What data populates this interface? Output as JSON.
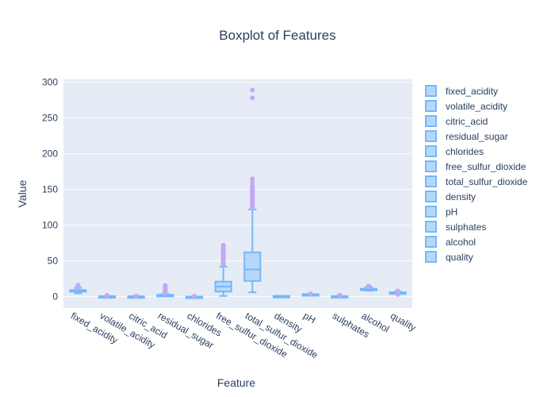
{
  "chart_data": {
    "type": "box",
    "title": "Boxplot of Features",
    "xlabel": "Feature",
    "ylabel": "Value",
    "ylim": [
      -16,
      304
    ],
    "yticks": [
      0,
      50,
      100,
      150,
      200,
      250,
      300
    ],
    "grid": true,
    "legend_position": "right",
    "colors": {
      "plot_bg": "#e5ecf6",
      "box_fill": "#b7d7f9",
      "box_line": "#74b8f9",
      "outlier": "#c3a8f5",
      "text": "#2a3f5f",
      "grid": "#ffffff"
    },
    "categories": [
      "fixed_acidity",
      "volatile_acidity",
      "citric_acid",
      "residual_sugar",
      "chlorides",
      "free_sulfur_dioxide",
      "total_sulfur_dioxide",
      "density",
      "pH",
      "sulphates",
      "alcohol",
      "quality"
    ],
    "series": [
      {
        "name": "fixed_acidity",
        "min": 4.6,
        "q1": 7.1,
        "median": 7.9,
        "q3": 9.2,
        "max": 12.3,
        "outliers": [
          12.6,
          13.0,
          13.5,
          14.0,
          14.5,
          15.0,
          15.6,
          15.9
        ]
      },
      {
        "name": "volatile_acidity",
        "min": 0.12,
        "q1": 0.39,
        "median": 0.52,
        "q3": 0.64,
        "max": 1.01,
        "outliers": [
          1.1,
          1.2,
          1.33,
          1.58
        ]
      },
      {
        "name": "citric_acid",
        "min": 0,
        "q1": 0.09,
        "median": 0.26,
        "q3": 0.42,
        "max": 0.79,
        "outliers": [
          1.0
        ]
      },
      {
        "name": "residual_sugar",
        "min": 0.9,
        "q1": 1.9,
        "median": 2.2,
        "q3": 2.6,
        "max": 3.6,
        "outliers": [
          4.0,
          5.0,
          6.0,
          7.0,
          8.0,
          9.0,
          10.0,
          11.0,
          12.0,
          13.0,
          13.9,
          15.4,
          15.5
        ]
      },
      {
        "name": "chlorides",
        "min": 0.04,
        "q1": 0.07,
        "median": 0.079,
        "q3": 0.09,
        "max": 0.119,
        "outliers": [
          0.2,
          0.4,
          0.6
        ]
      },
      {
        "name": "free_sulfur_dioxide",
        "min": 1,
        "q1": 7,
        "median": 14,
        "q3": 21,
        "max": 42,
        "outliers": [
          45,
          47,
          48,
          50,
          51,
          52,
          53,
          54,
          55,
          57,
          58,
          59,
          62,
          64,
          65,
          66,
          67,
          68,
          70,
          72
        ]
      },
      {
        "name": "total_sulfur_dioxide",
        "min": 6,
        "q1": 22,
        "median": 38,
        "q3": 62,
        "max": 122,
        "outliers": [
          124,
          126,
          127,
          128,
          129,
          130,
          131,
          133,
          134,
          135,
          136,
          137,
          139,
          140,
          141,
          142,
          143,
          144,
          145,
          146,
          147,
          148,
          149,
          150,
          151,
          152,
          153,
          155,
          160,
          165,
          278,
          289
        ]
      },
      {
        "name": "density",
        "min": 0.992,
        "q1": 0.9956,
        "median": 0.9968,
        "q3": 0.9978,
        "max": 1.001,
        "outliers": []
      },
      {
        "name": "pH",
        "min": 2.87,
        "q1": 3.21,
        "median": 3.31,
        "q3": 3.4,
        "max": 3.68,
        "outliers": [
          3.75,
          4.01
        ]
      },
      {
        "name": "sulphates",
        "min": 0.33,
        "q1": 0.55,
        "median": 0.62,
        "q3": 0.73,
        "max": 1.0,
        "outliers": [
          1.2,
          1.5,
          2.0
        ]
      },
      {
        "name": "alcohol",
        "min": 8.4,
        "q1": 9.5,
        "median": 10.2,
        "q3": 11.1,
        "max": 13.5,
        "outliers": [
          13.6,
          14.0,
          14.9
        ]
      },
      {
        "name": "quality",
        "min": 4,
        "q1": 5,
        "median": 6,
        "q3": 6,
        "max": 7,
        "outliers": [
          3,
          8
        ]
      }
    ]
  }
}
